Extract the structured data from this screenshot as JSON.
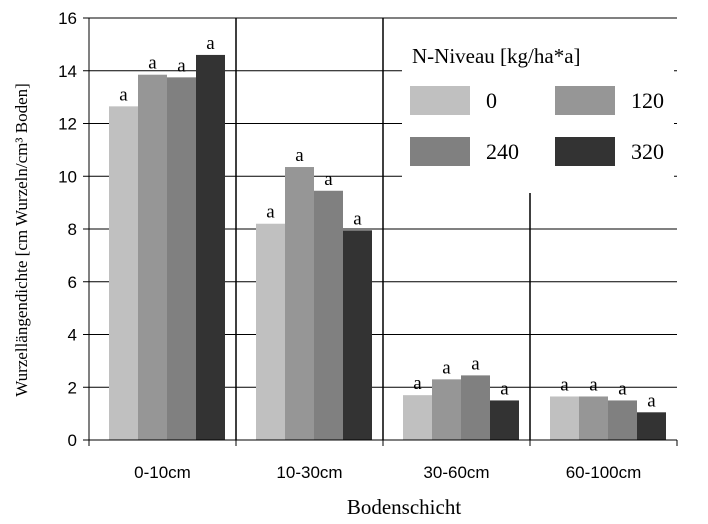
{
  "chart_data": {
    "type": "bar",
    "title": "",
    "xlabel": "Bodenschicht",
    "ylabel": "Wurzellängendichte [cm Wurzeln/cm³ Boden]",
    "ylim": [
      0,
      16
    ],
    "yticks": [
      "0",
      "2",
      "4",
      "6",
      "8",
      "10",
      "12",
      "14",
      "16"
    ],
    "grid": true,
    "categories": [
      "0-10cm",
      "10-30cm",
      "30-60cm",
      "60-100cm"
    ],
    "legend": {
      "title": "N-Niveau [kg/ha*a]",
      "position": "top-right"
    },
    "series": [
      {
        "name": "0",
        "color": "#c0c0c0",
        "values": [
          12.65,
          8.2,
          1.7,
          1.65
        ],
        "labels": [
          "a",
          "a",
          "a",
          "a"
        ]
      },
      {
        "name": "120",
        "color": "#969696",
        "values": [
          13.85,
          10.35,
          2.3,
          1.65
        ],
        "labels": [
          "a",
          "a",
          "a",
          "a"
        ]
      },
      {
        "name": "240",
        "color": "#808080",
        "values": [
          13.75,
          9.45,
          2.45,
          1.5
        ],
        "labels": [
          "a",
          "a",
          "a",
          "a"
        ]
      },
      {
        "name": "320",
        "color": "#333333",
        "values": [
          14.6,
          7.95,
          1.5,
          1.05
        ],
        "labels": [
          "a",
          "a",
          "a",
          "a"
        ]
      }
    ]
  }
}
